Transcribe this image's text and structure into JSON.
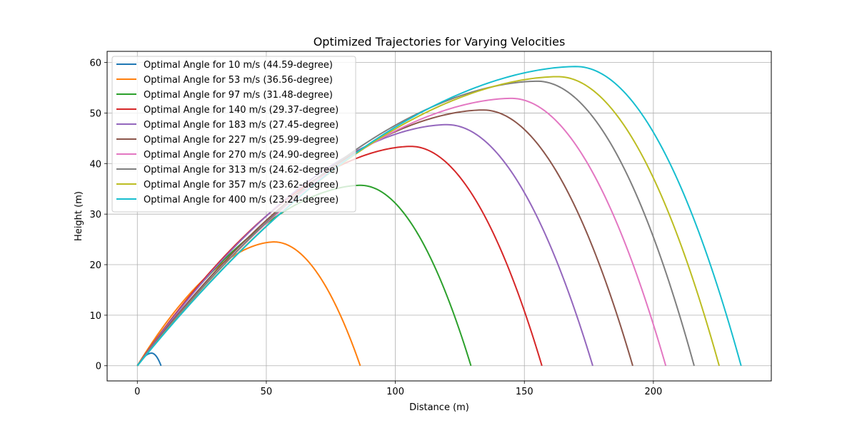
{
  "chart_data": {
    "type": "line",
    "title": "Optimized Trajectories for Varying Velocities",
    "xlabel": "Distance (m)",
    "ylabel": "Height (m)",
    "xlim": [
      -11.7,
      245.7
    ],
    "ylim": [
      -3.0,
      62.2
    ],
    "xticks": [
      0,
      50,
      100,
      150,
      200
    ],
    "yticks": [
      0,
      10,
      20,
      30,
      40,
      50,
      60
    ],
    "grid": true,
    "legend_position": "top-left",
    "series": [
      {
        "name": "Optimal Angle for 10 m/s (44.59-degree)",
        "color": "#1f77b4",
        "range": 9.2,
        "apex": [
          5.5,
          2.5
        ]
      },
      {
        "name": "Optimal Angle for 53 m/s (36.56-degree)",
        "color": "#ff7f0e",
        "range": 86.4,
        "apex": [
          53.0,
          24.5
        ]
      },
      {
        "name": "Optimal Angle for 97 m/s (31.48-degree)",
        "color": "#2ca02c",
        "range": 129.3,
        "apex": [
          86.5,
          35.7
        ]
      },
      {
        "name": "Optimal Angle for 140 m/s (29.37-degree)",
        "color": "#d62728",
        "range": 156.8,
        "apex": [
          106.0,
          43.4
        ]
      },
      {
        "name": "Optimal Angle for 183 m/s (27.45-degree)",
        "color": "#9467bd",
        "range": 176.5,
        "apex": [
          120.0,
          47.7
        ]
      },
      {
        "name": "Optimal Angle for 227 m/s (25.99-degree)",
        "color": "#8c564b",
        "range": 192.0,
        "apex": [
          134.0,
          50.6
        ]
      },
      {
        "name": "Optimal Angle for 270 m/s (24.90-degree)",
        "color": "#e377c2",
        "range": 204.8,
        "apex": [
          145.0,
          52.9
        ]
      },
      {
        "name": "Optimal Angle for 313 m/s (24.62-degree)",
        "color": "#7f7f7f",
        "range": 215.8,
        "apex": [
          155.0,
          56.3
        ]
      },
      {
        "name": "Optimal Angle for 357 m/s (23.62-degree)",
        "color": "#bcbd22",
        "range": 225.5,
        "apex": [
          163.0,
          57.2
        ]
      },
      {
        "name": "Optimal Angle for 400 m/s (23.24-degree)",
        "color": "#17becf",
        "range": 234.0,
        "apex": [
          170.0,
          59.2
        ]
      }
    ]
  }
}
